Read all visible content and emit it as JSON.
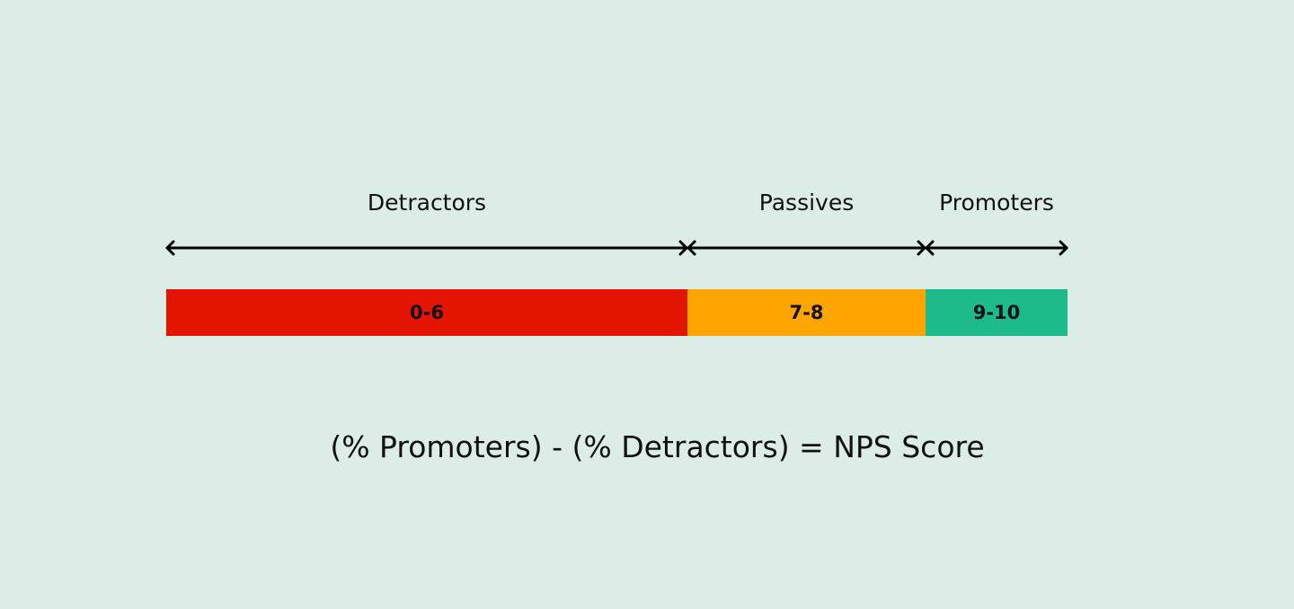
{
  "segments": [
    {
      "label": "Detractors",
      "range": "0-6",
      "color": "#e31501"
    },
    {
      "label": "Passives",
      "range": "7-8",
      "color": "#ffa500"
    },
    {
      "label": "Promoters",
      "range": "9-10",
      "color": "#1dbb8a"
    }
  ],
  "formula": "(% Promoters) - (% Detractors) = NPS Score"
}
